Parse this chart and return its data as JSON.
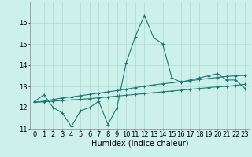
{
  "title": "",
  "xlabel": "Humidex (Indice chaleur)",
  "bg_color": "#cef0ea",
  "line_color": "#1a7a6e",
  "grid_color": "#aaddd5",
  "xlim": [
    -0.5,
    23.5
  ],
  "ylim": [
    11,
    17
  ],
  "yticks": [
    11,
    12,
    13,
    14,
    15,
    16
  ],
  "xticks": [
    0,
    1,
    2,
    3,
    4,
    5,
    6,
    7,
    8,
    9,
    10,
    11,
    12,
    13,
    14,
    15,
    16,
    17,
    18,
    19,
    20,
    21,
    22,
    23
  ],
  "line1_x": [
    0,
    1,
    2,
    3,
    4,
    5,
    6,
    7,
    8,
    9,
    10,
    11,
    12,
    13,
    14,
    15,
    16,
    17,
    18,
    19,
    20,
    21,
    22,
    23
  ],
  "line1_y": [
    12.3,
    12.6,
    12.0,
    11.75,
    11.1,
    11.85,
    12.0,
    12.3,
    11.2,
    12.0,
    14.1,
    15.35,
    16.35,
    15.3,
    15.0,
    13.4,
    13.2,
    13.3,
    13.4,
    13.5,
    13.6,
    13.3,
    13.3,
    12.9
  ],
  "line2_x": [
    0,
    1,
    2,
    3,
    4,
    5,
    6,
    7,
    8,
    9,
    10,
    11,
    12,
    13,
    14,
    15,
    16,
    17,
    18,
    19,
    20,
    21,
    22,
    23
  ],
  "line2_y": [
    12.25,
    12.3,
    12.38,
    12.45,
    12.5,
    12.56,
    12.62,
    12.68,
    12.74,
    12.8,
    12.87,
    12.94,
    13.01,
    13.07,
    13.12,
    13.17,
    13.22,
    13.27,
    13.32,
    13.37,
    13.42,
    13.47,
    13.5,
    13.52
  ],
  "line3_x": [
    0,
    1,
    2,
    3,
    4,
    5,
    6,
    7,
    8,
    9,
    10,
    11,
    12,
    13,
    14,
    15,
    16,
    17,
    18,
    19,
    20,
    21,
    22,
    23
  ],
  "line3_y": [
    12.25,
    12.27,
    12.3,
    12.33,
    12.36,
    12.39,
    12.42,
    12.46,
    12.5,
    12.54,
    12.58,
    12.62,
    12.66,
    12.7,
    12.74,
    12.78,
    12.82,
    12.86,
    12.9,
    12.94,
    12.98,
    13.0,
    13.05,
    13.1
  ],
  "marker": "+",
  "markersize": 3,
  "linewidth": 0.8,
  "fontsize_label": 7,
  "fontsize_tick": 6
}
